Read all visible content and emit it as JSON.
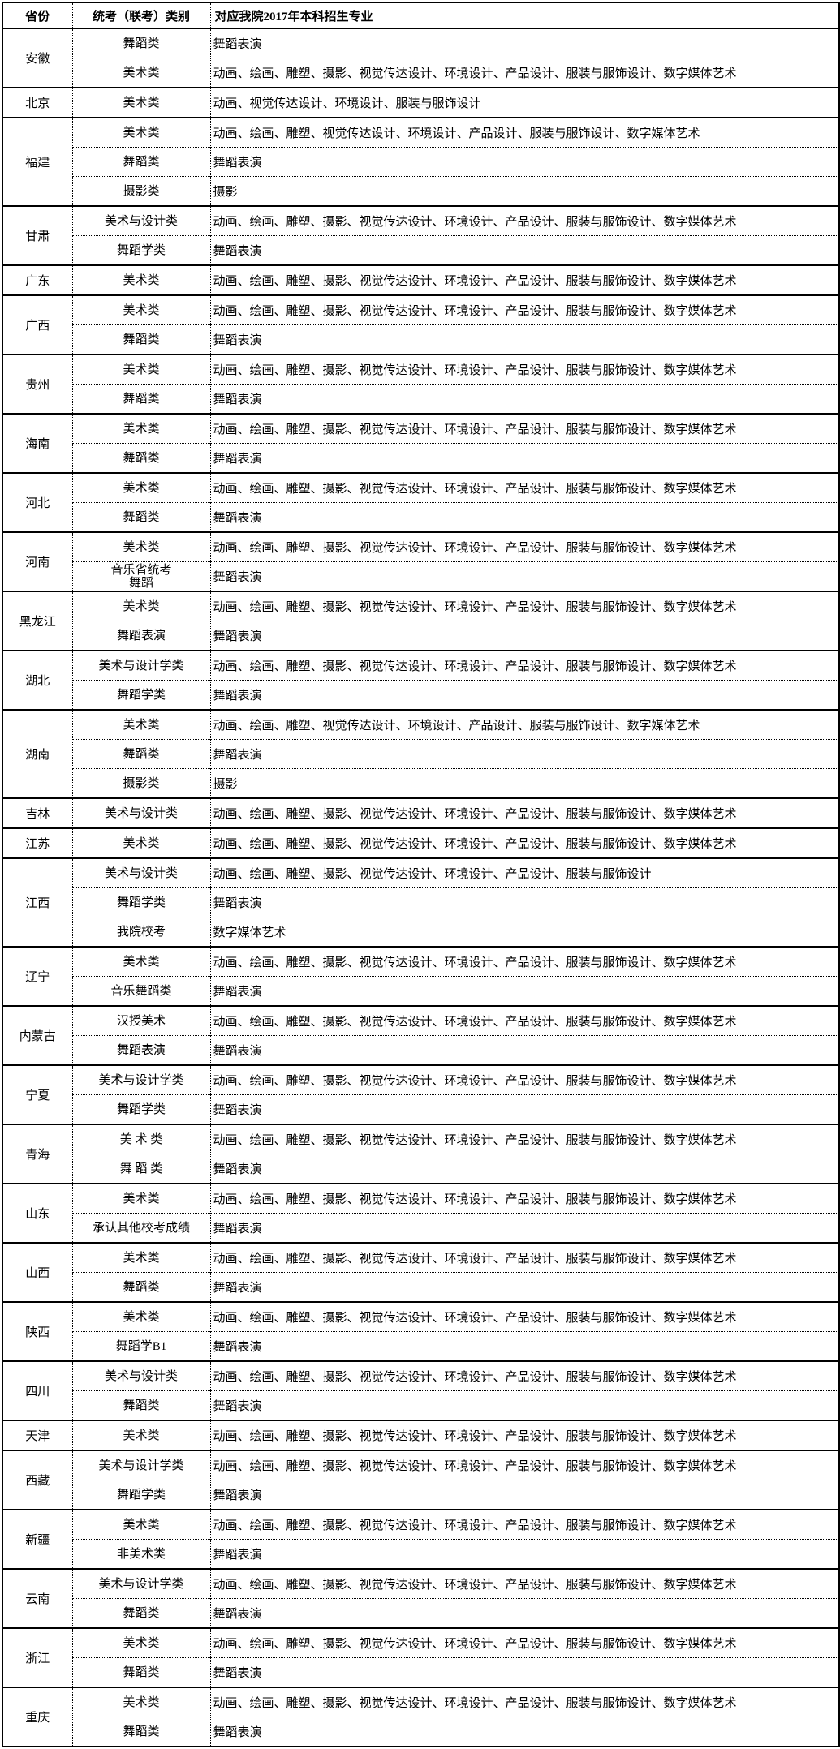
{
  "table": {
    "header": {
      "province": "省份",
      "category": "统考（联考）类别",
      "majors": "对应我院2017年本科招生专业"
    },
    "colors": {
      "border": "#000000",
      "light_border": "#dbe2ec",
      "text": "#000000",
      "background": "#ffffff"
    },
    "provinces": [
      {
        "name": "安徽",
        "rows": [
          {
            "category": "舞蹈类",
            "majors": "舞蹈表演"
          },
          {
            "category": "美术类",
            "majors": "动画、绘画、雕塑、摄影、视觉传达设计、环境设计、产品设计、服装与服饰设计、数字媒体艺术"
          }
        ]
      },
      {
        "name": "北京",
        "rows": [
          {
            "category": "美术类",
            "majors": "动画、视觉传达设计、环境设计、服装与服饰设计"
          }
        ]
      },
      {
        "name": "福建",
        "rows": [
          {
            "category": "美术类",
            "majors": "动画、绘画、雕塑、视觉传达设计、环境设计、产品设计、服装与服饰设计、数字媒体艺术"
          },
          {
            "category": "舞蹈类",
            "majors": "舞蹈表演"
          },
          {
            "category": "摄影类",
            "majors": "摄影"
          }
        ]
      },
      {
        "name": "甘肃",
        "rows": [
          {
            "category": "美术与设计类",
            "majors": "动画、绘画、雕塑、摄影、视觉传达设计、环境设计、产品设计、服装与服饰设计、数字媒体艺术"
          },
          {
            "category": "舞蹈学类",
            "majors": "舞蹈表演"
          }
        ]
      },
      {
        "name": "广东",
        "rows": [
          {
            "category": "美术类",
            "majors": "动画、绘画、雕塑、摄影、视觉传达设计、环境设计、产品设计、服装与服饰设计、数字媒体艺术"
          }
        ]
      },
      {
        "name": "广西",
        "rows": [
          {
            "category": "美术类",
            "majors": "动画、绘画、雕塑、摄影、视觉传达设计、环境设计、产品设计、服装与服饰设计、数字媒体艺术"
          },
          {
            "category": "舞蹈类",
            "majors": "舞蹈表演"
          }
        ]
      },
      {
        "name": "贵州",
        "rows": [
          {
            "category": "美术类",
            "majors": "动画、绘画、雕塑、摄影、视觉传达设计、环境设计、产品设计、服装与服饰设计、数字媒体艺术"
          },
          {
            "category": "舞蹈类",
            "majors": "舞蹈表演"
          }
        ]
      },
      {
        "name": "海南",
        "rows": [
          {
            "category": "美术类",
            "majors": "动画、绘画、雕塑、摄影、视觉传达设计、环境设计、产品设计、服装与服饰设计、数字媒体艺术"
          },
          {
            "category": "舞蹈类",
            "majors": "舞蹈表演"
          }
        ]
      },
      {
        "name": "河北",
        "rows": [
          {
            "category": "美术类",
            "majors": "动画、绘画、雕塑、摄影、视觉传达设计、环境设计、产品设计、服装与服饰设计、数字媒体艺术"
          },
          {
            "category": "舞蹈类",
            "majors": "舞蹈表演"
          }
        ]
      },
      {
        "name": "河南",
        "rows": [
          {
            "category": "美术类",
            "majors": "动画、绘画、雕塑、摄影、视觉传达设计、环境设计、产品设计、服装与服饰设计、数字媒体艺术"
          },
          {
            "category": "音乐省统考\n舞蹈",
            "majors": "舞蹈表演"
          }
        ]
      },
      {
        "name": "黑龙江",
        "rows": [
          {
            "category": "美术类",
            "majors": "动画、绘画、雕塑、摄影、视觉传达设计、环境设计、产品设计、服装与服饰设计、数字媒体艺术"
          },
          {
            "category": "舞蹈表演",
            "majors": "舞蹈表演"
          }
        ]
      },
      {
        "name": "湖北",
        "rows": [
          {
            "category": "美术与设计学类",
            "majors": "动画、绘画、雕塑、摄影、视觉传达设计、环境设计、产品设计、服装与服饰设计、数字媒体艺术"
          },
          {
            "category": "舞蹈学类",
            "majors": "舞蹈表演"
          }
        ]
      },
      {
        "name": "湖南",
        "rows": [
          {
            "category": "美术类",
            "majors": "动画、绘画、雕塑、视觉传达设计、环境设计、产品设计、服装与服饰设计、数字媒体艺术"
          },
          {
            "category": "舞蹈类",
            "majors": "舞蹈表演"
          },
          {
            "category": "摄影类",
            "majors": "摄影"
          }
        ]
      },
      {
        "name": "吉林",
        "rows": [
          {
            "category": "美术与设计类",
            "majors": "动画、绘画、雕塑、摄影、视觉传达设计、环境设计、产品设计、服装与服饰设计、数字媒体艺术"
          }
        ]
      },
      {
        "name": "江苏",
        "rows": [
          {
            "category": "美术类",
            "majors": "动画、绘画、雕塑、摄影、视觉传达设计、环境设计、产品设计、服装与服饰设计、数字媒体艺术"
          }
        ]
      },
      {
        "name": "江西",
        "rows": [
          {
            "category": "美术与设计类",
            "majors": "动画、绘画、雕塑、摄影、视觉传达设计、环境设计、产品设计、服装与服饰设计"
          },
          {
            "category": "舞蹈学类",
            "majors": "舞蹈表演"
          },
          {
            "category": "我院校考",
            "majors": "数字媒体艺术"
          }
        ]
      },
      {
        "name": "辽宁",
        "rows": [
          {
            "category": "美术类",
            "majors": "动画、绘画、雕塑、摄影、视觉传达设计、环境设计、产品设计、服装与服饰设计、数字媒体艺术"
          },
          {
            "category": "音乐舞蹈类",
            "majors": "舞蹈表演"
          }
        ]
      },
      {
        "name": "内蒙古",
        "rows": [
          {
            "category": "汉授美术",
            "majors": "动画、绘画、雕塑、摄影、视觉传达设计、环境设计、产品设计、服装与服饰设计、数字媒体艺术"
          },
          {
            "category": "舞蹈表演",
            "majors": "舞蹈表演"
          }
        ]
      },
      {
        "name": "宁夏",
        "rows": [
          {
            "category": "美术与设计学类",
            "majors": "动画、绘画、雕塑、摄影、视觉传达设计、环境设计、产品设计、服装与服饰设计、数字媒体艺术"
          },
          {
            "category": "舞蹈学类",
            "majors": "舞蹈表演"
          }
        ]
      },
      {
        "name": "青海",
        "rows": [
          {
            "category": "美 术 类",
            "majors": "动画、绘画、雕塑、摄影、视觉传达设计、环境设计、产品设计、服装与服饰设计、数字媒体艺术"
          },
          {
            "category": "舞 蹈 类",
            "majors": "舞蹈表演"
          }
        ]
      },
      {
        "name": "山东",
        "rows": [
          {
            "category": "美术类",
            "majors": "动画、绘画、雕塑、摄影、视觉传达设计、环境设计、产品设计、服装与服饰设计、数字媒体艺术"
          },
          {
            "category": "承认其他校考成绩",
            "majors": "舞蹈表演"
          }
        ]
      },
      {
        "name": "山西",
        "rows": [
          {
            "category": "美术类",
            "majors": "动画、绘画、雕塑、摄影、视觉传达设计、环境设计、产品设计、服装与服饰设计、数字媒体艺术"
          },
          {
            "category": "舞蹈类",
            "majors": "舞蹈表演"
          }
        ]
      },
      {
        "name": "陕西",
        "rows": [
          {
            "category": "美术类",
            "majors": "动画、绘画、雕塑、摄影、视觉传达设计、环境设计、产品设计、服装与服饰设计、数字媒体艺术"
          },
          {
            "category": "舞蹈学B1",
            "majors": "舞蹈表演"
          }
        ]
      },
      {
        "name": "四川",
        "rows": [
          {
            "category": "美术与设计类",
            "majors": "动画、绘画、雕塑、摄影、视觉传达设计、环境设计、产品设计、服装与服饰设计、数字媒体艺术"
          },
          {
            "category": "舞蹈类",
            "majors": "舞蹈表演"
          }
        ]
      },
      {
        "name": "天津",
        "rows": [
          {
            "category": "美术类",
            "majors": "动画、绘画、雕塑、摄影、视觉传达设计、环境设计、产品设计、服装与服饰设计、数字媒体艺术"
          }
        ]
      },
      {
        "name": "西藏",
        "rows": [
          {
            "category": "美术与设计学类",
            "majors": "动画、绘画、雕塑、摄影、视觉传达设计、环境设计、产品设计、服装与服饰设计、数字媒体艺术",
            "light_top": true
          },
          {
            "category": "舞蹈学类",
            "majors": "舞蹈表演"
          }
        ]
      },
      {
        "name": "新疆",
        "rows": [
          {
            "category": "美术类",
            "majors": "动画、绘画、雕塑、摄影、视觉传达设计、环境设计、产品设计、服装与服饰设计、数字媒体艺术"
          },
          {
            "category": "非美术类",
            "majors": "舞蹈表演"
          }
        ]
      },
      {
        "name": "云南",
        "rows": [
          {
            "category": "美术与设计学类",
            "majors": "动画、绘画、雕塑、摄影、视觉传达设计、环境设计、产品设计、服装与服饰设计、数字媒体艺术"
          },
          {
            "category": "舞蹈类",
            "majors": "舞蹈表演"
          }
        ]
      },
      {
        "name": "浙江",
        "rows": [
          {
            "category": "美术类",
            "majors": "动画、绘画、雕塑、摄影、视觉传达设计、环境设计、产品设计、服装与服饰设计、数字媒体艺术"
          },
          {
            "category": "舞蹈类",
            "majors": "舞蹈表演"
          }
        ]
      },
      {
        "name": "重庆",
        "rows": [
          {
            "category": "美术类",
            "majors": "动画、绘画、雕塑、摄影、视觉传达设计、环境设计、产品设计、服装与服饰设计、数字媒体艺术"
          },
          {
            "category": "舞蹈类",
            "majors": "舞蹈表演"
          }
        ]
      }
    ]
  }
}
